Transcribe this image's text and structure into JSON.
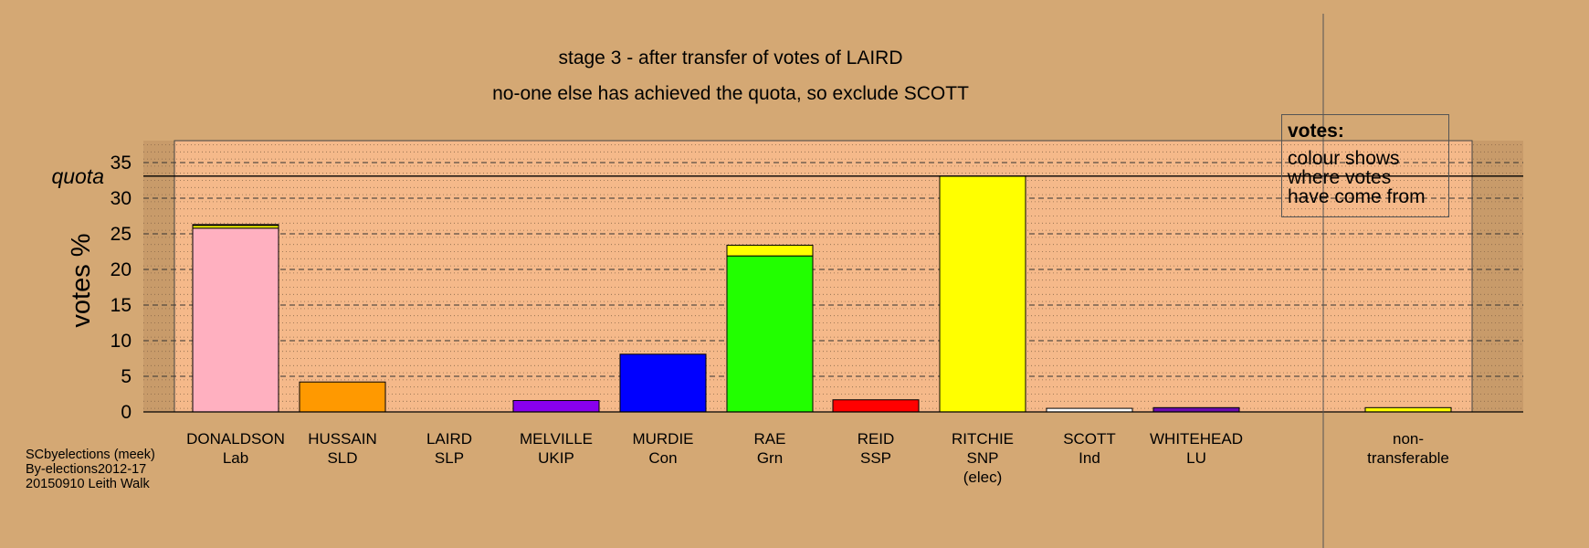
{
  "chart_data": {
    "type": "bar",
    "title": "stage 3 - after transfer of votes of LAIRD",
    "subtitle": "no-one else has achieved the quota, so exclude SCOTT",
    "ylabel": "votes %",
    "ylim": [
      0,
      37
    ],
    "yticks": [
      0,
      5,
      10,
      15,
      20,
      25,
      30,
      35
    ],
    "quota": {
      "label": "quota",
      "value": 33.1
    },
    "candidates": [
      {
        "name": "DONALDSON",
        "party": "Lab",
        "color": "#ffb0c0",
        "segments": [
          {
            "value": 25.8,
            "color": "#ffb0c0"
          },
          {
            "value": 0.4,
            "color": "#ffff00"
          },
          {
            "value": 0.1,
            "color": "#ffffff"
          }
        ]
      },
      {
        "name": "HUSSAIN",
        "party": "SLD",
        "color": "#ff9900",
        "segments": [
          {
            "value": 4.2,
            "color": "#ff9900"
          }
        ]
      },
      {
        "name": "LAIRD",
        "party": "SLP",
        "color": "#8b0000",
        "segments": []
      },
      {
        "name": "MELVILLE",
        "party": "UKIP",
        "color": "#8800ee",
        "segments": [
          {
            "value": 1.6,
            "color": "#8800ee"
          }
        ]
      },
      {
        "name": "MURDIE",
        "party": "Con",
        "color": "#0000ff",
        "segments": [
          {
            "value": 8.1,
            "color": "#0000ff"
          }
        ]
      },
      {
        "name": "RAE",
        "party": "Grn",
        "color": "#22ff00",
        "segments": [
          {
            "value": 21.9,
            "color": "#22ff00"
          },
          {
            "value": 1.5,
            "color": "#ffff00"
          }
        ]
      },
      {
        "name": "REID",
        "party": "SSP",
        "color": "#ff0000",
        "segments": [
          {
            "value": 1.7,
            "color": "#ff0000"
          }
        ]
      },
      {
        "name": "RITCHIE",
        "party": "SNP",
        "note": "(elec)",
        "color": "#ffff00",
        "segments": [
          {
            "value": 33.1,
            "color": "#ffff00"
          }
        ]
      },
      {
        "name": "SCOTT",
        "party": "Ind",
        "color": "#ffffff",
        "segments": [
          {
            "value": 0.5,
            "color": "#ffffff"
          }
        ]
      },
      {
        "name": "WHITEHEAD",
        "party": "LU",
        "color": "#6a0dad",
        "segments": [
          {
            "value": 0.6,
            "color": "#6a0dad"
          }
        ]
      }
    ],
    "nontransferable": {
      "name": "non-",
      "name2": "transferable",
      "segments": [
        {
          "value": 0.6,
          "color": "#ffff00"
        }
      ]
    },
    "legend": {
      "head": "votes:",
      "lines": [
        "colour shows",
        "where votes",
        "have come from"
      ],
      "position": "top-right"
    },
    "grid": true
  },
  "credit": [
    "SCbyelections (meek)",
    "By-elections2012-17",
    "20150910 Leith Walk"
  ]
}
